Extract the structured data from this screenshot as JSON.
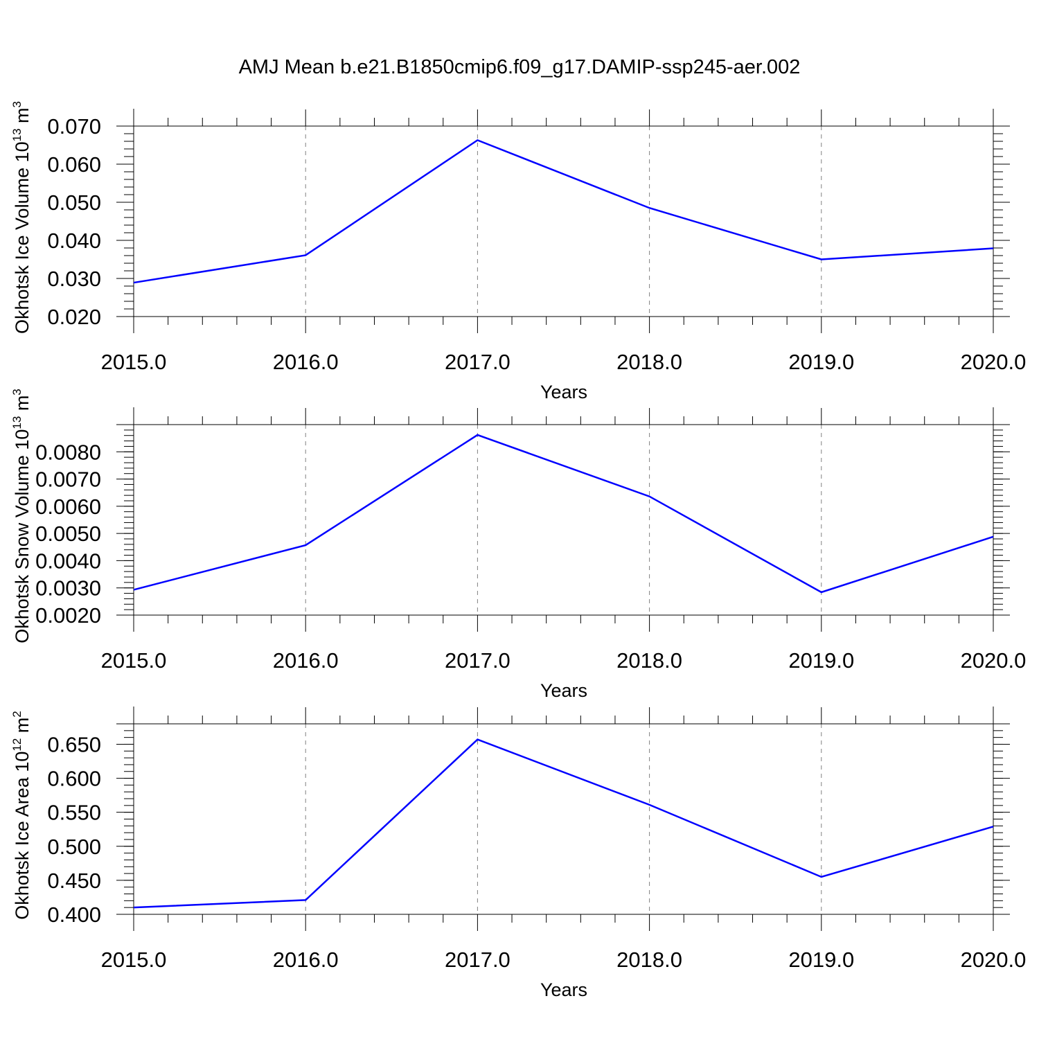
{
  "figure": {
    "title": "AMJ Mean b.e21.B1850cmip6.f09_g17.DAMIP-ssp245-aer.002"
  },
  "chart_data": [
    {
      "type": "line",
      "title": "",
      "xlabel": "Years",
      "ylabel": {
        "main": "Okhotsk Ice Volume 10",
        "sup": "13",
        "unit": " m",
        "unit_sup": "3"
      },
      "x": [
        2015,
        2016,
        2017,
        2018,
        2019,
        2020
      ],
      "x_ticks": [
        "2015.0",
        "2016.0",
        "2017.0",
        "2018.0",
        "2019.0",
        "2020.0"
      ],
      "series": [
        {
          "color": "#0000ff",
          "values": [
            0.0289,
            0.0361,
            0.0663,
            0.0485,
            0.035,
            0.0379
          ]
        }
      ],
      "xlim": [
        2015,
        2020
      ],
      "ylim": [
        0.02,
        0.07
      ],
      "y_ticks": [
        0.02,
        0.03,
        0.04,
        0.05,
        0.06,
        0.07
      ],
      "y_tick_labels": [
        "0.020",
        "0.030",
        "0.040",
        "0.050",
        "0.060",
        "0.070"
      ],
      "grid": "vertical dashed at major x ticks"
    },
    {
      "type": "line",
      "title": "",
      "xlabel": "Years",
      "ylabel": {
        "main": "Okhotsk Snow Volume 10",
        "sup": "13",
        "unit": " m",
        "unit_sup": "3"
      },
      "x": [
        2015,
        2016,
        2017,
        2018,
        2019,
        2020
      ],
      "x_ticks": [
        "2015.0",
        "2016.0",
        "2017.0",
        "2018.0",
        "2019.0",
        "2020.0"
      ],
      "series": [
        {
          "color": "#0000ff",
          "values": [
            0.00293,
            0.00457,
            0.00862,
            0.00636,
            0.00284,
            0.00488
          ]
        }
      ],
      "xlim": [
        2015,
        2020
      ],
      "ylim": [
        0.002,
        0.009
      ],
      "y_ticks": [
        0.002,
        0.003,
        0.004,
        0.005,
        0.006,
        0.007,
        0.008
      ],
      "y_tick_labels": [
        "0.0020",
        "0.0030",
        "0.0040",
        "0.0050",
        "0.0060",
        "0.0070",
        "0.0080"
      ],
      "grid": "vertical dashed at major x ticks"
    },
    {
      "type": "line",
      "title": "",
      "xlabel": "Years",
      "ylabel": {
        "main": "Okhotsk Ice Area 10",
        "sup": "12",
        "unit": " m",
        "unit_sup": "2"
      },
      "x": [
        2015,
        2016,
        2017,
        2018,
        2019,
        2020
      ],
      "x_ticks": [
        "2015.0",
        "2016.0",
        "2017.0",
        "2018.0",
        "2019.0",
        "2020.0"
      ],
      "series": [
        {
          "color": "#0000ff",
          "values": [
            0.41,
            0.421,
            0.657,
            0.561,
            0.455,
            0.529
          ]
        }
      ],
      "xlim": [
        2015,
        2020
      ],
      "ylim": [
        0.4,
        0.68
      ],
      "y_ticks": [
        0.4,
        0.45,
        0.5,
        0.55,
        0.6,
        0.65
      ],
      "y_tick_labels": [
        "0.400",
        "0.450",
        "0.500",
        "0.550",
        "0.600",
        "0.650"
      ],
      "grid": "vertical dashed at major x ticks"
    }
  ]
}
